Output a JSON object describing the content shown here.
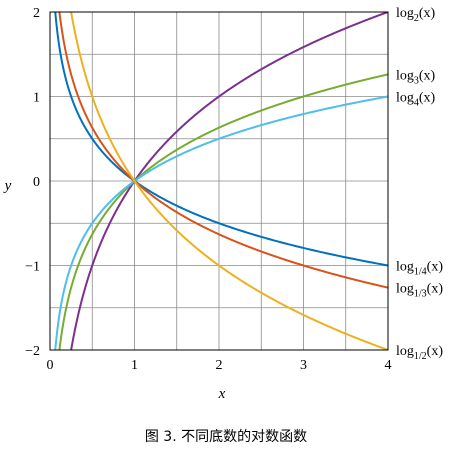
{
  "chart_data": {
    "type": "line",
    "caption": "图 3. 不同底数的对数函数",
    "xlabel": "x",
    "ylabel": "y",
    "xlim": [
      0,
      4
    ],
    "ylim": [
      -2,
      2
    ],
    "grid": true,
    "xticks": [
      {
        "value": 0,
        "label": "0"
      },
      {
        "value": 1,
        "label": "1"
      },
      {
        "value": 2,
        "label": "2"
      },
      {
        "value": 3,
        "label": "3"
      },
      {
        "value": 4,
        "label": "4"
      }
    ],
    "yticks": [
      {
        "value": 2,
        "label": "2"
      },
      {
        "value": 1,
        "label": "1"
      },
      {
        "value": 0,
        "label": "0"
      },
      {
        "value": -1,
        "label": "−1"
      },
      {
        "value": -2,
        "label": "−2"
      }
    ],
    "series": [
      {
        "key": "log2",
        "base": 2,
        "color": "#7b2f8e",
        "label_pre": "log",
        "label_sub": "2",
        "label_post": "(x)",
        "points": [
          [
            0.25,
            -2
          ],
          [
            0.5,
            -1
          ],
          [
            1,
            0
          ],
          [
            2,
            1
          ],
          [
            3,
            1.585
          ],
          [
            4,
            2
          ]
        ]
      },
      {
        "key": "log3",
        "base": 3,
        "color": "#77ac30",
        "label_pre": "log",
        "label_sub": "3",
        "label_post": "(x)",
        "points": [
          [
            0.111,
            -2
          ],
          [
            0.333,
            -1
          ],
          [
            1,
            0
          ],
          [
            2,
            0.631
          ],
          [
            3,
            1
          ],
          [
            4,
            1.262
          ]
        ]
      },
      {
        "key": "log4",
        "base": 4,
        "color": "#4dbeee",
        "label_pre": "log",
        "label_sub": "4",
        "label_post": "(x)",
        "points": [
          [
            0.0625,
            -2
          ],
          [
            0.25,
            -1
          ],
          [
            1,
            0
          ],
          [
            2,
            0.5
          ],
          [
            3,
            0.792
          ],
          [
            4,
            1
          ]
        ]
      },
      {
        "key": "log1_4",
        "base": 0.25,
        "color": "#0072bd",
        "label_pre": "log",
        "label_sub": "1/4",
        "label_post": "(x)",
        "points": [
          [
            0.25,
            1
          ],
          [
            1,
            0
          ],
          [
            2,
            -0.5
          ],
          [
            3,
            -0.792
          ],
          [
            4,
            -1
          ]
        ]
      },
      {
        "key": "log1_3",
        "base": 0.3333333333,
        "color": "#d95319",
        "label_pre": "log",
        "label_sub": "1/3",
        "label_post": "(x)",
        "points": [
          [
            0.111,
            2
          ],
          [
            0.333,
            1
          ],
          [
            1,
            0
          ],
          [
            2,
            -0.631
          ],
          [
            3,
            -1
          ],
          [
            4,
            -1.262
          ]
        ]
      },
      {
        "key": "log1_2",
        "base": 0.5,
        "color": "#edb120",
        "label_pre": "log",
        "label_sub": "1/2",
        "label_post": "(x)",
        "points": [
          [
            0.25,
            2
          ],
          [
            0.5,
            1
          ],
          [
            1,
            0
          ],
          [
            2,
            -1
          ],
          [
            3,
            -1.585
          ],
          [
            4,
            -2
          ]
        ]
      }
    ]
  }
}
